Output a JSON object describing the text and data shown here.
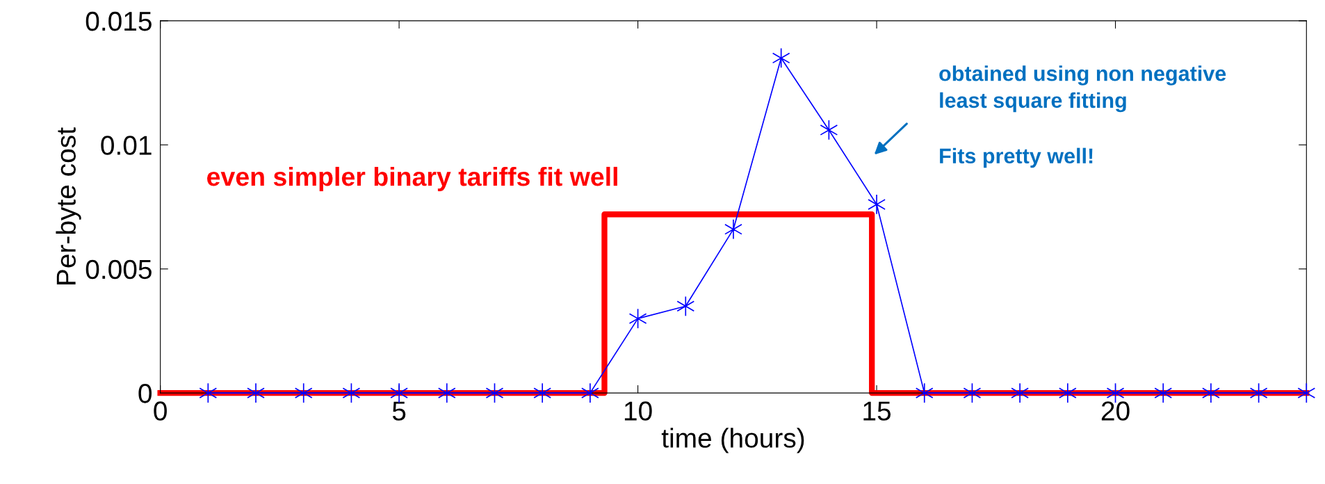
{
  "chart_data": {
    "type": "line",
    "xlabel": "time (hours)",
    "ylabel": "Per-byte cost",
    "xlim": [
      0,
      24
    ],
    "ylim": [
      0,
      0.015
    ],
    "xticks": [
      0,
      5,
      10,
      15,
      20
    ],
    "yticks": [
      0,
      0.005,
      0.01,
      0.015
    ],
    "grid": false,
    "legend": false,
    "series": [
      {
        "color": "#0000ff",
        "marker": "cross",
        "x": [
          1,
          2,
          3,
          4,
          5,
          6,
          7,
          8,
          9,
          10,
          11,
          12,
          13,
          14,
          15,
          16,
          17,
          18,
          19,
          20,
          21,
          22,
          23,
          24
        ],
        "values": [
          0,
          0,
          0,
          0,
          0,
          0,
          0,
          0,
          0,
          0.003,
          0.0035,
          0.0066,
          0.0135,
          0.0106,
          0.0076,
          0,
          0,
          0,
          0,
          0,
          0,
          0,
          0,
          0
        ]
      },
      {
        "color": "#ff0000",
        "marker": "none",
        "x": [
          0,
          9.3,
          9.3,
          14.9,
          14.9,
          24
        ],
        "values": [
          0,
          0,
          0.0072,
          0.0072,
          0,
          0
        ]
      }
    ],
    "annotations": [
      "even simpler binary tariffs fit well",
      "obtained using non negative\nleast square fitting",
      "Fits pretty well!"
    ]
  }
}
